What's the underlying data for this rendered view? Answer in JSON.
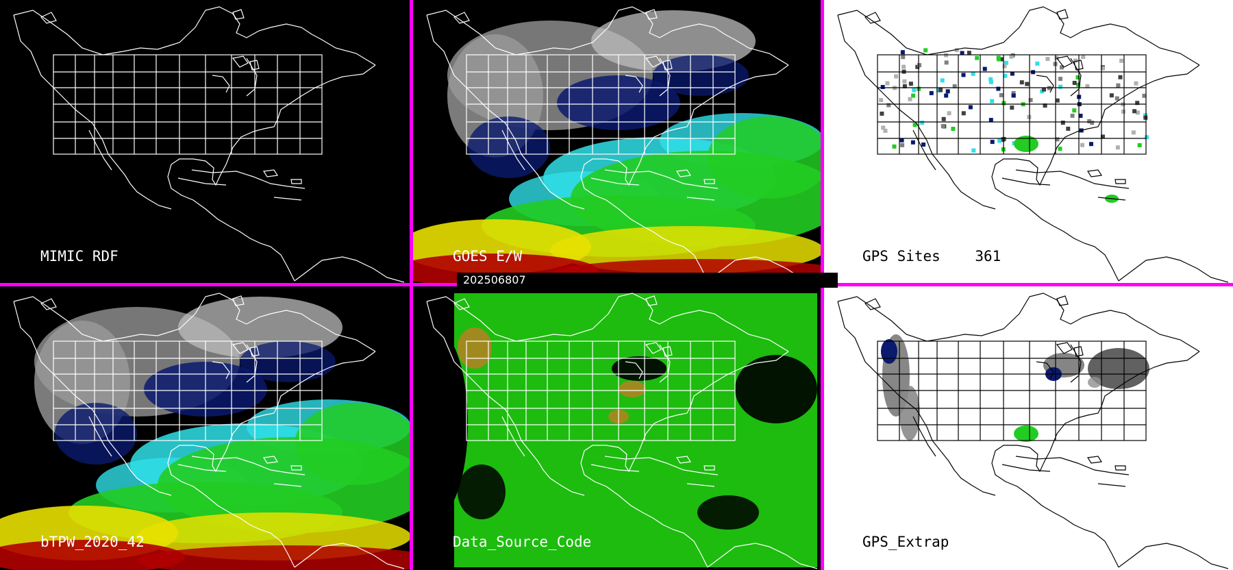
{
  "timestamp": "202506807",
  "panels": [
    {
      "id": "mimic-rdf",
      "label": "MIMIC RDF",
      "theme": "dark",
      "layer": "none"
    },
    {
      "id": "goes-ew",
      "label": "GOES E/W",
      "theme": "dark",
      "layer": "tpw"
    },
    {
      "id": "gps-sites",
      "label": "GPS Sites    361",
      "theme": "light",
      "layer": "sites"
    },
    {
      "id": "btpw",
      "label": "bTPW_2020_42",
      "theme": "dark",
      "layer": "tpw"
    },
    {
      "id": "data-source-code",
      "label": "Data_Source_Code",
      "theme": "dark",
      "layer": "source"
    },
    {
      "id": "gps-extrap",
      "label": "GPS_Extrap",
      "theme": "light",
      "layer": "extrap"
    }
  ],
  "colors": {
    "divider": "#ff00ff",
    "map_outline_dark": "#ffffff",
    "map_outline_light": "#000000",
    "tpw_low_gray": "#8c8c8c",
    "tpw_navy": "#0a1a6e",
    "tpw_cyan": "#2fe0e8",
    "tpw_green": "#22cc22",
    "tpw_yellow": "#e8e000",
    "tpw_red": "#b00000",
    "source_green": "#20cc10",
    "source_olive": "#a08a20"
  }
}
